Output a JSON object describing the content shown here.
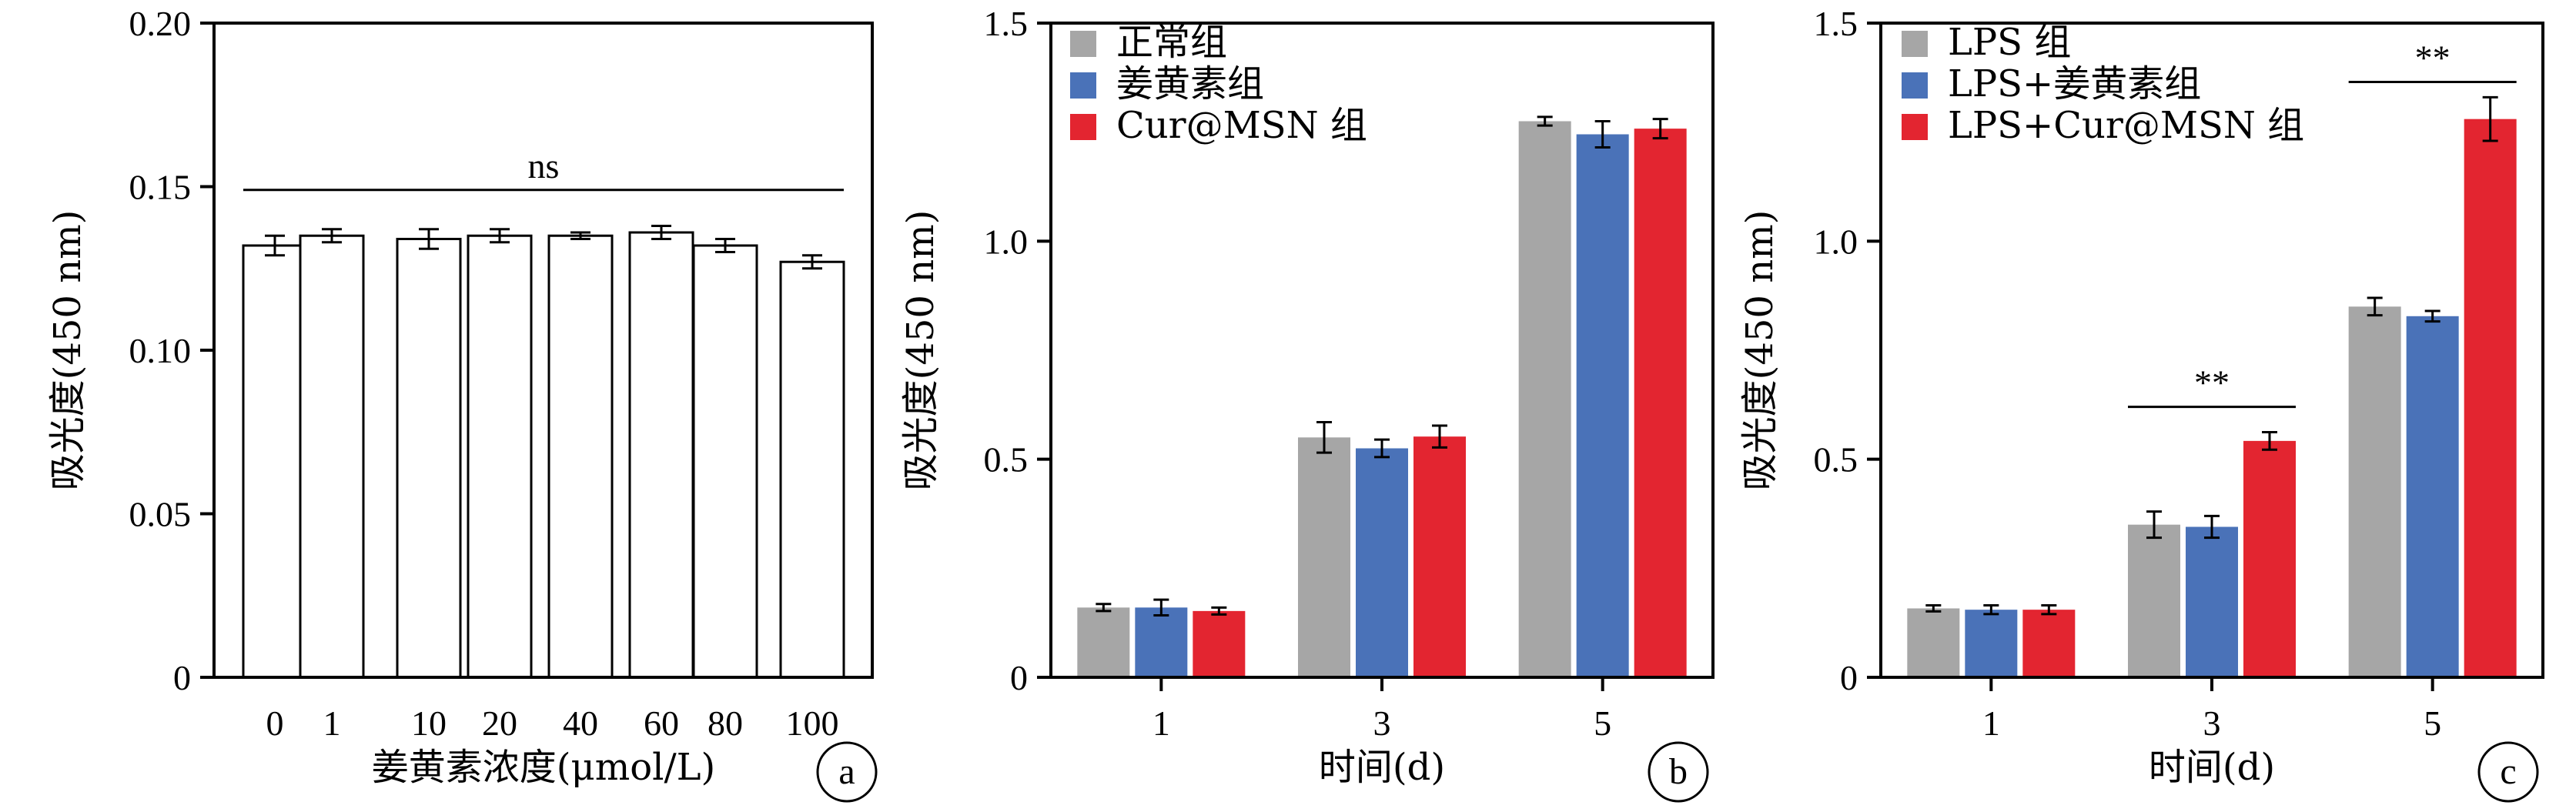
{
  "chart_data": [
    {
      "type": "bar",
      "panel_label": "a",
      "xlabel": "姜黄素浓度(μmol/L)",
      "ylabel": "吸光度(450 nm)",
      "categories": [
        "0",
        "1",
        "10",
        "20",
        "40",
        "60",
        "80",
        "100"
      ],
      "series": [
        {
          "values": [
            0.132,
            0.135,
            0.134,
            0.135,
            0.135,
            0.136,
            0.132,
            0.127
          ],
          "errors": [
            0.003,
            0.002,
            0.003,
            0.002,
            0.001,
            0.002,
            0.002,
            0.002
          ],
          "color": "#ffffff"
        }
      ],
      "ylim": [
        0,
        0.2
      ],
      "yticks": [
        0,
        0.05,
        0.1,
        0.15,
        0.2
      ],
      "ytick_labels": [
        "0",
        "0.05",
        "0.10",
        "0.15",
        "0.20"
      ],
      "significance": [
        {
          "from": 0,
          "to": 7,
          "y": 0.149,
          "label": "ns"
        }
      ],
      "grid": false
    },
    {
      "type": "bar",
      "panel_label": "b",
      "xlabel": "时间(d)",
      "ylabel": "吸光度(450 nm)",
      "categories": [
        "1",
        "3",
        "5"
      ],
      "series": [
        {
          "name": "正常组",
          "color": "#a6a6a6",
          "values": [
            0.16,
            0.55,
            1.275
          ],
          "errors": [
            0.008,
            0.035,
            0.01
          ]
        },
        {
          "name": "姜黄素组",
          "color": "#4a72b8",
          "values": [
            0.16,
            0.525,
            1.245
          ],
          "errors": [
            0.018,
            0.02,
            0.03
          ]
        },
        {
          "name": "Cur@MSN 组",
          "color": "#e32530",
          "values": [
            0.152,
            0.552,
            1.258
          ],
          "errors": [
            0.008,
            0.025,
            0.022
          ]
        }
      ],
      "ylim": [
        0,
        1.5
      ],
      "yticks": [
        0,
        0.5,
        1.0,
        1.5
      ],
      "ytick_labels": [
        "0",
        "0.5",
        "1.0",
        "1.5"
      ],
      "legend": "top-left",
      "grid": false
    },
    {
      "type": "bar",
      "panel_label": "c",
      "xlabel": "时间(d)",
      "ylabel": "吸光度(450 nm)",
      "categories": [
        "1",
        "3",
        "5"
      ],
      "series": [
        {
          "name": "LPS 组",
          "color": "#a6a6a6",
          "values": [
            0.158,
            0.35,
            0.85
          ],
          "errors": [
            0.007,
            0.03,
            0.02
          ]
        },
        {
          "name": "LPS+姜黄素组",
          "color": "#4a72b8",
          "values": [
            0.155,
            0.345,
            0.828
          ],
          "errors": [
            0.01,
            0.025,
            0.012
          ]
        },
        {
          "name": "LPS+Cur@MSN 组",
          "color": "#e32530",
          "values": [
            0.155,
            0.542,
            1.28
          ],
          "errors": [
            0.01,
            0.02,
            0.05
          ]
        }
      ],
      "ylim": [
        0,
        1.5
      ],
      "yticks": [
        0,
        0.5,
        1.0,
        1.5
      ],
      "ytick_labels": [
        "0",
        "0.5",
        "1.0",
        "1.5"
      ],
      "legend": "top-left",
      "significance": [
        {
          "category": 1,
          "from_series": 0,
          "to_series": 2,
          "y": 0.62,
          "label": "**"
        },
        {
          "category": 2,
          "from_series": 0,
          "to_series": 2,
          "y": 1.365,
          "label": "**"
        }
      ],
      "grid": false
    }
  ]
}
